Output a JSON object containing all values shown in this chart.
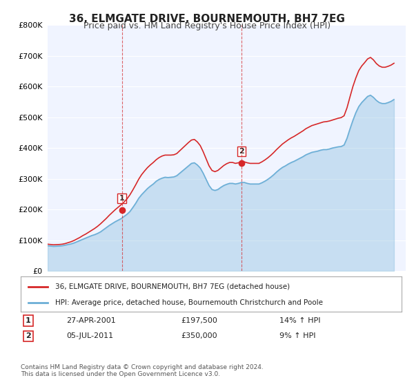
{
  "title": "36, ELMGATE DRIVE, BOURNEMOUTH, BH7 7EG",
  "subtitle": "Price paid vs. HM Land Registry's House Price Index (HPI)",
  "ylabel_ticks": [
    "£0",
    "£100K",
    "£200K",
    "£300K",
    "£400K",
    "£500K",
    "£600K",
    "£700K",
    "£800K"
  ],
  "ylim": [
    0,
    800000
  ],
  "xlim_start": 1995.0,
  "xlim_end": 2025.5,
  "legend_line1": "36, ELMGATE DRIVE, BOURNEMOUTH, BH7 7EG (detached house)",
  "legend_line2": "HPI: Average price, detached house, Bournemouth Christchurch and Poole",
  "sale1_label": "1",
  "sale1_date": "27-APR-2001",
  "sale1_price": "£197,500",
  "sale1_hpi": "14% ↑ HPI",
  "sale1_year": 2001.32,
  "sale1_value": 197500,
  "sale2_label": "2",
  "sale2_date": "05-JUL-2011",
  "sale2_price": "£350,000",
  "sale2_hpi": "9% ↑ HPI",
  "sale2_year": 2011.51,
  "sale2_value": 350000,
  "footer": "Contains HM Land Registry data © Crown copyright and database right 2024.\nThis data is licensed under the Open Government Licence v3.0.",
  "hpi_color": "#6baed6",
  "price_color": "#d62728",
  "sale_marker_color": "#d62728",
  "background_color": "#ffffff",
  "plot_bg_color": "#f0f4ff",
  "grid_color": "#ffffff",
  "hpi_data_years": [
    1995.0,
    1995.25,
    1995.5,
    1995.75,
    1996.0,
    1996.25,
    1996.5,
    1996.75,
    1997.0,
    1997.25,
    1997.5,
    1997.75,
    1998.0,
    1998.25,
    1998.5,
    1998.75,
    1999.0,
    1999.25,
    1999.5,
    1999.75,
    2000.0,
    2000.25,
    2000.5,
    2000.75,
    2001.0,
    2001.25,
    2001.5,
    2001.75,
    2002.0,
    2002.25,
    2002.5,
    2002.75,
    2003.0,
    2003.25,
    2003.5,
    2003.75,
    2004.0,
    2004.25,
    2004.5,
    2004.75,
    2005.0,
    2005.25,
    2005.5,
    2005.75,
    2006.0,
    2006.25,
    2006.5,
    2006.75,
    2007.0,
    2007.25,
    2007.5,
    2007.75,
    2008.0,
    2008.25,
    2008.5,
    2008.75,
    2009.0,
    2009.25,
    2009.5,
    2009.75,
    2010.0,
    2010.25,
    2010.5,
    2010.75,
    2011.0,
    2011.25,
    2011.5,
    2011.75,
    2012.0,
    2012.25,
    2012.5,
    2012.75,
    2013.0,
    2013.25,
    2013.5,
    2013.75,
    2014.0,
    2014.25,
    2014.5,
    2014.75,
    2015.0,
    2015.25,
    2015.5,
    2015.75,
    2016.0,
    2016.25,
    2016.5,
    2016.75,
    2017.0,
    2017.25,
    2017.5,
    2017.75,
    2018.0,
    2018.25,
    2018.5,
    2018.75,
    2019.0,
    2019.25,
    2019.5,
    2019.75,
    2020.0,
    2020.25,
    2020.5,
    2020.75,
    2021.0,
    2021.25,
    2021.5,
    2021.75,
    2022.0,
    2022.25,
    2022.5,
    2022.75,
    2023.0,
    2023.25,
    2023.5,
    2023.75,
    2024.0,
    2024.25,
    2024.5
  ],
  "hpi_data_values": [
    82000,
    81000,
    80000,
    80500,
    81000,
    82000,
    84000,
    86000,
    88000,
    91000,
    95000,
    99000,
    103000,
    107000,
    111000,
    115000,
    118000,
    122000,
    127000,
    134000,
    141000,
    148000,
    154000,
    160000,
    165000,
    170000,
    177000,
    184000,
    193000,
    206000,
    220000,
    236000,
    248000,
    258000,
    268000,
    276000,
    283000,
    292000,
    298000,
    302000,
    305000,
    304000,
    305000,
    306000,
    310000,
    318000,
    326000,
    334000,
    342000,
    350000,
    352000,
    345000,
    335000,
    318000,
    298000,
    278000,
    265000,
    262000,
    265000,
    272000,
    278000,
    282000,
    285000,
    285000,
    283000,
    285000,
    288000,
    288000,
    285000,
    283000,
    283000,
    283000,
    283000,
    287000,
    292000,
    298000,
    305000,
    313000,
    322000,
    330000,
    337000,
    342000,
    348000,
    353000,
    357000,
    362000,
    367000,
    372000,
    378000,
    382000,
    386000,
    388000,
    390000,
    393000,
    395000,
    395000,
    397000,
    400000,
    402000,
    404000,
    405000,
    410000,
    432000,
    462000,
    490000,
    515000,
    535000,
    548000,
    558000,
    568000,
    572000,
    565000,
    555000,
    548000,
    545000,
    545000,
    548000,
    552000,
    558000
  ],
  "price_data_years": [
    1995.0,
    1995.25,
    1995.5,
    1995.75,
    1996.0,
    1996.25,
    1996.5,
    1996.75,
    1997.0,
    1997.25,
    1997.5,
    1997.75,
    1998.0,
    1998.25,
    1998.5,
    1998.75,
    1999.0,
    1999.25,
    1999.5,
    1999.75,
    2000.0,
    2000.25,
    2000.5,
    2000.75,
    2001.0,
    2001.25,
    2001.5,
    2001.75,
    2002.0,
    2002.25,
    2002.5,
    2002.75,
    2003.0,
    2003.25,
    2003.5,
    2003.75,
    2004.0,
    2004.25,
    2004.5,
    2004.75,
    2005.0,
    2005.25,
    2005.5,
    2005.75,
    2006.0,
    2006.25,
    2006.5,
    2006.75,
    2007.0,
    2007.25,
    2007.5,
    2007.75,
    2008.0,
    2008.25,
    2008.5,
    2008.75,
    2009.0,
    2009.25,
    2009.5,
    2009.75,
    2010.0,
    2010.25,
    2010.5,
    2010.75,
    2011.0,
    2011.25,
    2011.5,
    2011.75,
    2012.0,
    2012.25,
    2012.5,
    2012.75,
    2013.0,
    2013.25,
    2013.5,
    2013.75,
    2014.0,
    2014.25,
    2014.5,
    2014.75,
    2015.0,
    2015.25,
    2015.5,
    2015.75,
    2016.0,
    2016.25,
    2016.5,
    2016.75,
    2017.0,
    2017.25,
    2017.5,
    2017.75,
    2018.0,
    2018.25,
    2018.5,
    2018.75,
    2019.0,
    2019.25,
    2019.5,
    2019.75,
    2020.0,
    2020.25,
    2020.5,
    2020.75,
    2021.0,
    2021.25,
    2021.5,
    2021.75,
    2022.0,
    2022.25,
    2022.5,
    2022.75,
    2023.0,
    2023.25,
    2023.5,
    2023.75,
    2024.0,
    2024.25,
    2024.5
  ],
  "price_data_values": [
    87000,
    86000,
    85000,
    85500,
    86000,
    87000,
    89000,
    92000,
    95000,
    99000,
    104000,
    109000,
    115000,
    120000,
    126000,
    132000,
    138000,
    145000,
    153000,
    162000,
    171000,
    181000,
    190000,
    199000,
    207000,
    215000,
    224000,
    234000,
    247000,
    263000,
    280000,
    298000,
    313000,
    325000,
    336000,
    345000,
    353000,
    362000,
    369000,
    374000,
    377000,
    377000,
    377000,
    378000,
    382000,
    391000,
    400000,
    409000,
    418000,
    426000,
    428000,
    420000,
    408000,
    388000,
    365000,
    342000,
    327000,
    323000,
    327000,
    335000,
    343000,
    349000,
    353000,
    353000,
    350000,
    352000,
    355000,
    355000,
    352000,
    350000,
    350000,
    350000,
    350000,
    355000,
    361000,
    368000,
    376000,
    385000,
    395000,
    404000,
    413000,
    420000,
    427000,
    433000,
    438000,
    444000,
    450000,
    456000,
    463000,
    468000,
    473000,
    476000,
    479000,
    482000,
    485000,
    486000,
    488000,
    491000,
    494000,
    497000,
    499000,
    505000,
    531000,
    566000,
    600000,
    628000,
    652000,
    667000,
    678000,
    690000,
    695000,
    687000,
    675000,
    667000,
    663000,
    663000,
    666000,
    670000,
    676000
  ]
}
